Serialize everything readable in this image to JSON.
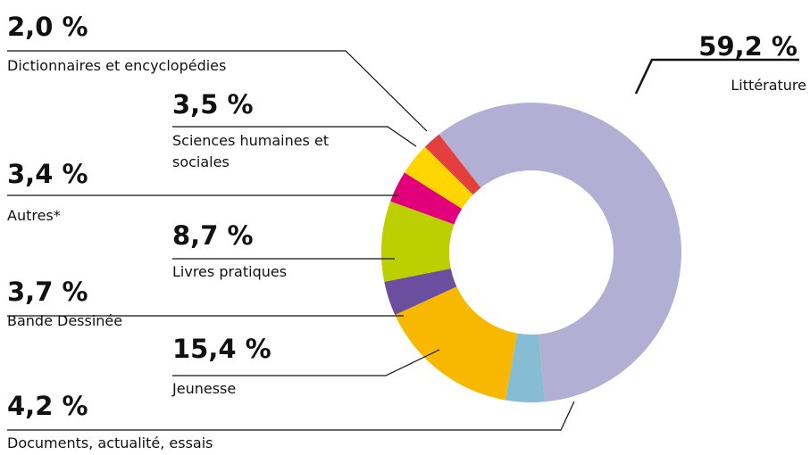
{
  "chart_data": {
    "type": "donut",
    "categories": [
      "Littérature",
      "Documents, actualité, essais",
      "Jeunesse",
      "Bande Dessinée",
      "Livres pratiques",
      "Autres*",
      "Sciences humaines et sociales",
      "Dictionnaires et encyclopédies"
    ],
    "values": [
      59.2,
      4.2,
      15.4,
      3.7,
      8.7,
      3.4,
      3.5,
      2.0
    ],
    "value_labels": [
      "59,2 %",
      "4,2 %",
      "15,4 %",
      "3,7 %",
      "8,7 %",
      "3,4 %",
      "3,5 %",
      "2,0 %"
    ],
    "colors": [
      "#b3aed3",
      "#86bcd4",
      "#f9b800",
      "#6b4f9e",
      "#bccf00",
      "#e2007a",
      "#ffd500",
      "#e53e3e"
    ]
  }
}
